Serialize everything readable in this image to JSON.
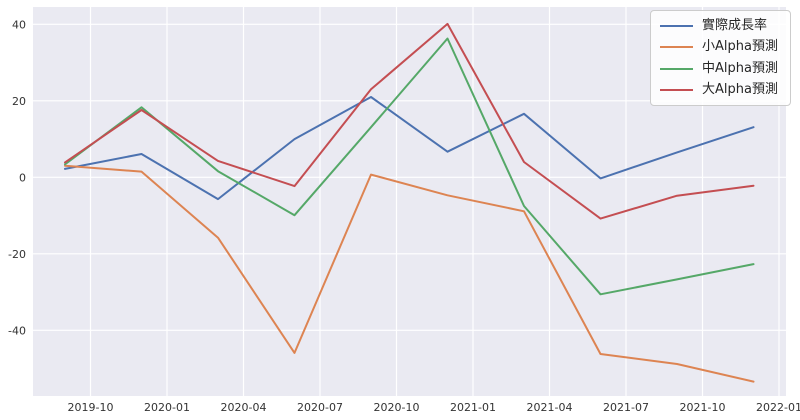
{
  "chart_data": {
    "type": "line",
    "title": "",
    "xlabel": "",
    "ylabel": "",
    "x": [
      "2019-09",
      "2019-12",
      "2020-03",
      "2020-06",
      "2020-09",
      "2020-12",
      "2021-03",
      "2021-06",
      "2021-09",
      "2021-12"
    ],
    "series": [
      {
        "name": "實際成長率",
        "color": "#4c72b0",
        "values": [
          2.2,
          6.1,
          -5.7,
          10.0,
          21.0,
          6.7,
          16.6,
          -0.3,
          6.5,
          13.1
        ]
      },
      {
        "name": "小Alpha預測",
        "color": "#dd8452",
        "values": [
          3.0,
          1.5,
          -15.8,
          -45.9,
          0.7,
          -4.7,
          -8.9,
          -46.2,
          -48.8,
          -53.4
        ]
      },
      {
        "name": "中Alpha預測",
        "color": "#55a868",
        "values": [
          3.4,
          18.3,
          1.6,
          -9.9,
          13.1,
          36.3,
          -7.5,
          -30.6,
          -26.7,
          -22.7
        ]
      },
      {
        "name": "大Alpha預測",
        "color": "#c44e52",
        "values": [
          3.9,
          17.6,
          4.3,
          -2.3,
          23.0,
          40.1,
          4.0,
          -10.8,
          -4.8,
          -2.2
        ]
      }
    ],
    "x_tick_labels": [
      "2019-10",
      "2020-01",
      "2020-04",
      "2020-07",
      "2020-10",
      "2021-01",
      "2021-04",
      "2021-07",
      "2021-10",
      "2022-01"
    ],
    "y_tick_labels": [
      "40",
      "20",
      "0",
      "-20",
      "-40"
    ],
    "y_ticks": [
      40,
      20,
      0,
      -20,
      -40
    ],
    "ylim": [
      -57.3,
      44.5
    ],
    "grid": true,
    "legend_position": "upper right",
    "styles": {
      "plot_bg": "#eaeaf2",
      "grid_color": "#ffffff",
      "tick_label_color": "#333333",
      "legend_bg": "#ffffff",
      "legend_border": "#cccccc",
      "line_width": 2
    }
  }
}
